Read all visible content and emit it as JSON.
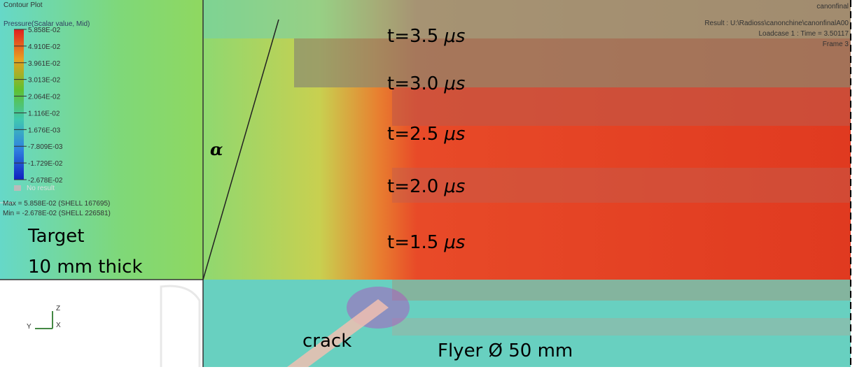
{
  "header": {
    "title": "Contour Plot",
    "subtitle": "Pressure(Scalar value, Mid)",
    "model": "canonfinal",
    "result": "Result : U:\\Radioss\\canonchine\\canonfinalA00",
    "loadcase": "Loadcase 1 : Time = 3.50117",
    "frame": "Frame 3"
  },
  "legend": {
    "labels": [
      "5.858E-02",
      "4.910E-02",
      "3.961E-02",
      "3.013E-02",
      "2.064E-02",
      "1.116E-02",
      "1.676E-03",
      "-7.809E-03",
      "-1.729E-02",
      "-2.678E-02"
    ],
    "no_result": "No result",
    "max": "Max = 5.858E-02 (SHELL 167695)",
    "min": "Min = -2.678E-02 (SHELL 226581)"
  },
  "annotations": {
    "target": "Target",
    "thickness": "10 mm thick",
    "angle": "α",
    "crack": "crack",
    "flyer": "Flyer Ø 50 mm",
    "times": [
      {
        "text": "t=3.5",
        "unit": "μs"
      },
      {
        "text": "t=3.0",
        "unit": "μs"
      },
      {
        "text": "t=2.5",
        "unit": "μs"
      },
      {
        "text": "t=2.0",
        "unit": "μs"
      },
      {
        "text": "t=1.5",
        "unit": "μs"
      }
    ]
  },
  "axes": {
    "z": "Z",
    "y": "Y",
    "x": "X"
  }
}
